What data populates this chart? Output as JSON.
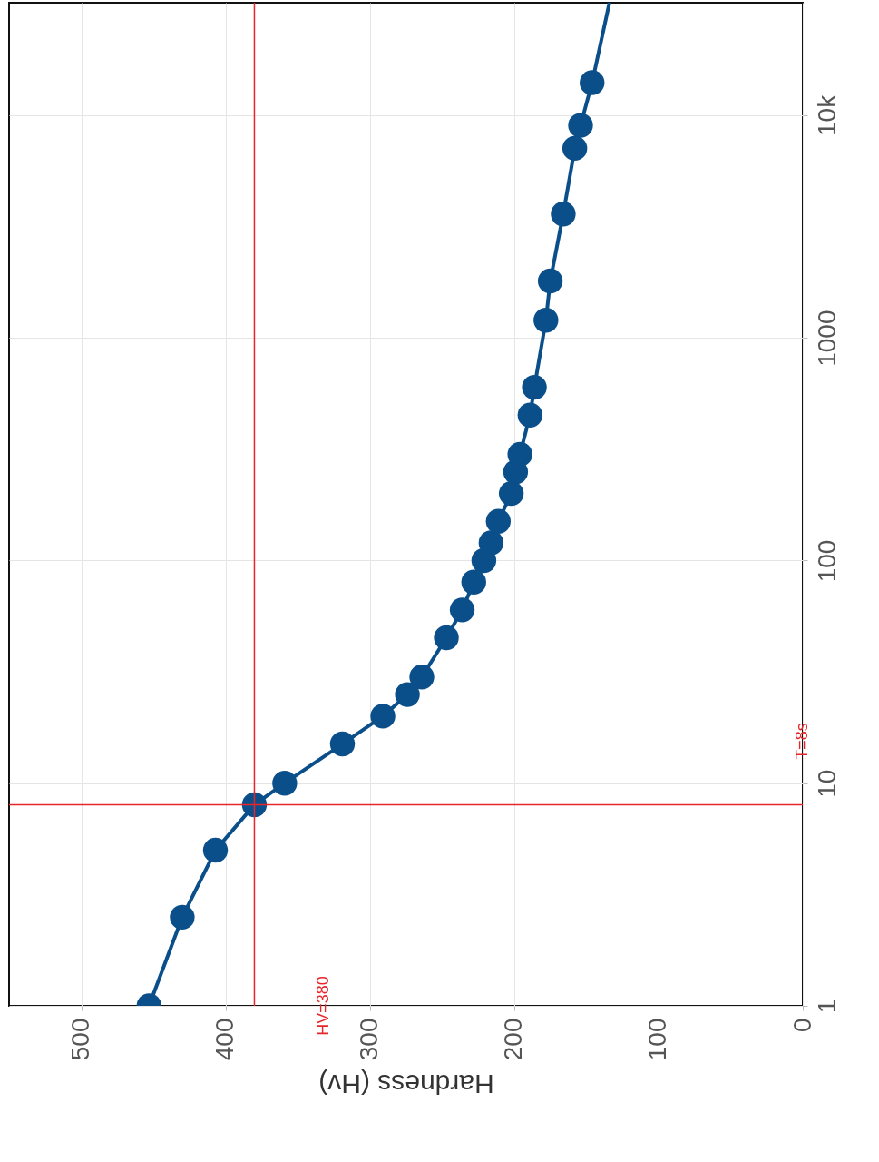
{
  "chart_data": {
    "type": "line",
    "xlabel": "Hardness (Hv)",
    "xlim": [
      550,
      0
    ],
    "xticks": [
      0,
      100,
      200,
      300,
      400,
      500
    ],
    "ylim": [
      1,
      32000
    ],
    "yticks": [
      1,
      10,
      100,
      1000,
      {
        "value": 10000,
        "label": "10k"
      }
    ],
    "log": "y",
    "grid": true,
    "marker": "circle",
    "line_style": "solid",
    "series": [
      {
        "color": "#0b4f8a",
        "x": [
          453,
          430,
          407,
          380,
          359,
          319,
          291,
          274,
          264,
          247,
          236,
          228,
          221,
          216,
          211,
          202,
          199,
          196,
          189,
          186,
          178,
          175,
          166,
          158,
          154,
          146
        ],
        "values": [
          1,
          2.5,
          5,
          8,
          10,
          15,
          20,
          25,
          30,
          45,
          60,
          80,
          100,
          120,
          150,
          200,
          250,
          300,
          450,
          600,
          1200,
          1800,
          3600,
          7100,
          9000,
          14000
        ]
      },
      {
        "color": "#0b4f8a",
        "marker": "none",
        "x": [
          146,
          134
        ],
        "values": [
          14000,
          32000
        ]
      }
    ],
    "ref_lines": [
      {
        "axis": "x",
        "value": 380,
        "label": "HV=380",
        "color": "#e8262a"
      },
      {
        "axis": "y",
        "value": 8,
        "label": "T=8s",
        "color": "#e8262a"
      }
    ]
  }
}
